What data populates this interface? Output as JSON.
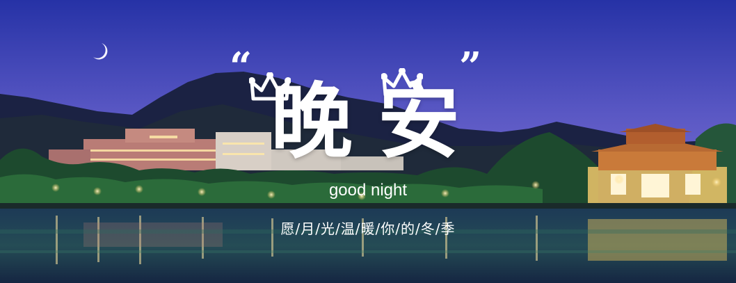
{
  "banner": {
    "quote_open": "“",
    "quote_close": "”",
    "title_chars": [
      "晚",
      "安"
    ],
    "subtitle_en": "good night",
    "subtitle_cn": "愿/月/光/温/暖/你/的/冬/季"
  },
  "colors": {
    "sky_top": "#2a36a8",
    "sky_bottom": "#6a63c9",
    "text": "#ffffff",
    "water_light": "#e8c35a"
  },
  "icons": [
    "crescent-moon-icon",
    "crown-icon",
    "crown-icon"
  ]
}
